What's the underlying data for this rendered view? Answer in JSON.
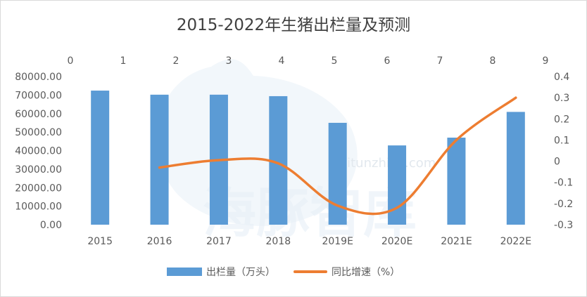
{
  "chart_data": {
    "type": "bar+line",
    "title": "2015-2022年生猪出栏量及预测",
    "categories": [
      "2015",
      "2016",
      "2017",
      "2018",
      "2019E",
      "2020E",
      "2021E",
      "2022E"
    ],
    "series": [
      {
        "name": "出栏量（万头）",
        "type": "bar",
        "axis": "left",
        "values": [
          72400,
          70200,
          70200,
          69400,
          55000,
          42800,
          47000,
          60900
        ]
      },
      {
        "name": "同比增速（%）",
        "type": "line",
        "axis": "right",
        "values": [
          null,
          -0.03,
          0.005,
          -0.01,
          -0.21,
          -0.22,
          0.1,
          0.3
        ]
      }
    ],
    "left_axis": {
      "ylim": [
        0,
        80000
      ],
      "ticks": [
        "0.00",
        "10000.00",
        "20000.00",
        "30000.00",
        "40000.00",
        "50000.00",
        "60000.00",
        "70000.00",
        "80000.00"
      ]
    },
    "right_axis": {
      "ylim": [
        -0.3,
        0.4
      ],
      "ticks": [
        "-0.3",
        "-0.2",
        "-0.1",
        "0",
        "0.1",
        "0.2",
        "0.3",
        "0.4"
      ]
    },
    "top_axis": {
      "xlim": [
        0,
        9
      ],
      "ticks": [
        "0",
        "1",
        "2",
        "3",
        "4",
        "5",
        "6",
        "7",
        "8",
        "9"
      ]
    },
    "grid": false,
    "legend": "bottom",
    "colors": {
      "bar": "#5b9bd5",
      "line": "#ed7d31"
    },
    "watermark": {
      "text": "海豚智库",
      "url": "haitunzhiku.com"
    }
  }
}
